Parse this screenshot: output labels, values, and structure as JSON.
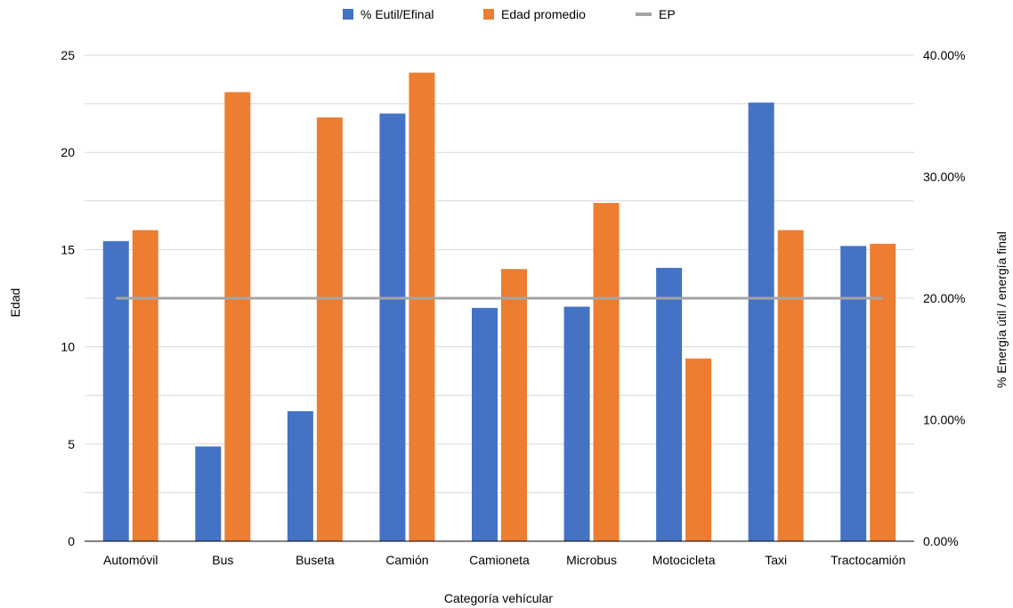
{
  "chart_data": {
    "type": "bar",
    "categories": [
      "Automóvil",
      "Bus",
      "Buseta",
      "Camión",
      "Camioneta",
      "Microbus",
      "Motocicleta",
      "Taxi",
      "Tractocamión"
    ],
    "series": [
      {
        "name": "% Eutil/Efinal",
        "axis": "right",
        "color": "#4472C4",
        "values": [
          24.7,
          7.8,
          10.7,
          35.2,
          19.2,
          19.3,
          22.5,
          36.1,
          24.3
        ]
      },
      {
        "name": "Edad promedio",
        "axis": "left",
        "color": "#ED7D31",
        "values": [
          16.0,
          23.1,
          21.8,
          24.1,
          14.0,
          17.4,
          9.4,
          16.0,
          15.3
        ]
      }
    ],
    "reference_line": {
      "name": "EP",
      "axis": "right",
      "value": 20.0,
      "color": "#A5A5A5"
    },
    "title": "",
    "xlabel": "Categoría vehícular",
    "ylabel": "Edad",
    "y2label": "% Energía útil / energía final",
    "ylim": [
      0,
      25
    ],
    "yticks": [
      "0",
      "5",
      "10",
      "15",
      "20",
      "25"
    ],
    "y2lim": [
      0,
      40
    ],
    "y2ticks": [
      "0.00%",
      "10.00%",
      "20.00%",
      "30.00%",
      "40.00%"
    ],
    "grid": true,
    "legend_position": "top-center"
  }
}
